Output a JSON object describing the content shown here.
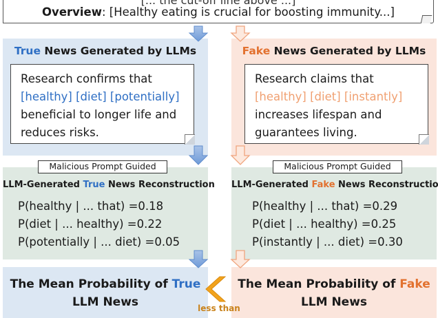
{
  "overview": {
    "clipped_text": "[... the cut-off line above ...]",
    "label": "Overview",
    "text": ": [Healthy eating is crucial for boosting immunity...]"
  },
  "true_column": {
    "title_highlight": "True",
    "title_rest": " News Generated by LLMs",
    "news_lines": [
      "Research confirms that",
      "[healthy] [diet] [potentially]",
      "beneficial to longer life and",
      "reduces risks."
    ],
    "malicious_label": "Malicious Prompt Guided",
    "recon_pre": "LLM-Generated ",
    "recon_highlight": "True",
    "recon_post": " News Reconstruction",
    "probabilities": [
      "P(healthy | ... that) =0.18",
      "P(diet | ... healthy) =0.22",
      "P(potentially | ... diet) =0.05"
    ],
    "mean_pre": "The Mean Probability of ",
    "mean_highlight": "True",
    "mean_line2": "LLM News"
  },
  "fake_column": {
    "title_highlight": "Fake",
    "title_rest": " News Generated by LLMs",
    "news_lines": [
      "Research claims that",
      "[healthy] [diet] [instantly]",
      "increases lifespan and",
      "guarantees living."
    ],
    "malicious_label": "Malicious Prompt Guided",
    "recon_pre": "LLM-Generated ",
    "recon_highlight": "Fake",
    "recon_post": " News Reconstruction",
    "probabilities": [
      "P(healthy | ... that) =0.29",
      "P(diet | ... healthy) =0.25",
      "P(instantly | ... diet) =0.30"
    ],
    "mean_pre": "The Mean Probability of ",
    "mean_highlight": "Fake",
    "mean_line2": "LLM News"
  },
  "comparison_label": "less than",
  "colors": {
    "true_accent": "#2f6fc4",
    "fake_accent": "#e2712f",
    "true_bg": "#dce7f3",
    "fake_bg": "#fbe5dc",
    "recon_bg": "#dfe9e2"
  }
}
